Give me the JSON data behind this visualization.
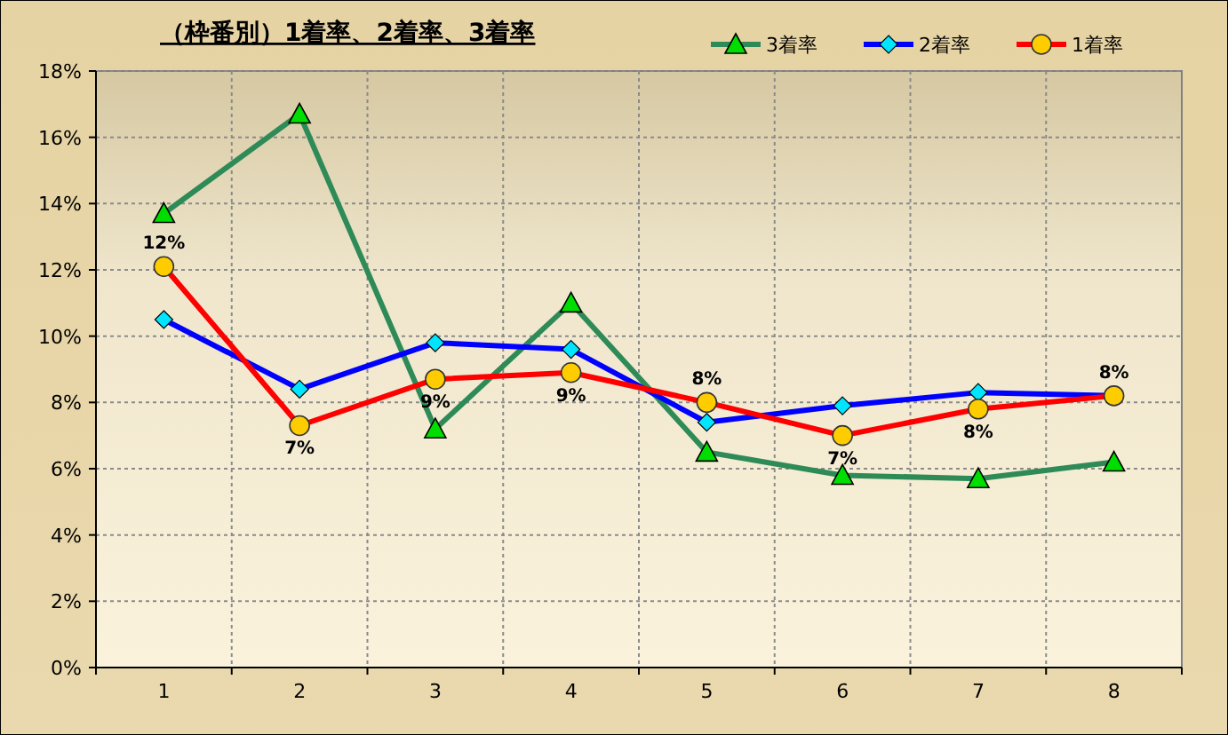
{
  "chart_data": {
    "type": "line",
    "title": "（枠番別）1着率、2着率、3着率",
    "categories": [
      "1",
      "2",
      "3",
      "4",
      "5",
      "6",
      "7",
      "8"
    ],
    "ylim": [
      0,
      18
    ],
    "yticks": [
      {
        "value": 0,
        "label": "0%"
      },
      {
        "value": 2,
        "label": "2%"
      },
      {
        "value": 4,
        "label": "4%"
      },
      {
        "value": 6,
        "label": "6%"
      },
      {
        "value": 8,
        "label": "8%"
      },
      {
        "value": 10,
        "label": "10%"
      },
      {
        "value": 12,
        "label": "12%"
      },
      {
        "value": 14,
        "label": "14%"
      },
      {
        "value": 16,
        "label": "16%"
      },
      {
        "value": 18,
        "label": "18%"
      }
    ],
    "grid": true,
    "legend": "top right",
    "series": [
      {
        "name": "3着率",
        "color": "#2e8b57",
        "marker": "triangle",
        "values": [
          13.7,
          16.7,
          7.2,
          11.0,
          6.5,
          5.8,
          5.7,
          6.2
        ]
      },
      {
        "name": "2着率",
        "color": "#0000ff",
        "marker": "diamond",
        "values": [
          10.5,
          8.4,
          9.8,
          9.6,
          7.4,
          7.9,
          8.3,
          8.2
        ]
      },
      {
        "name": "1着率",
        "color": "#ff0000",
        "marker": "circle",
        "values": [
          12.1,
          7.3,
          8.7,
          8.9,
          8.0,
          7.0,
          7.8,
          8.2
        ],
        "value_labels": [
          "12%",
          "7%",
          "9%",
          "9%",
          "8%",
          "7%",
          "8%",
          "8%"
        ]
      }
    ]
  }
}
